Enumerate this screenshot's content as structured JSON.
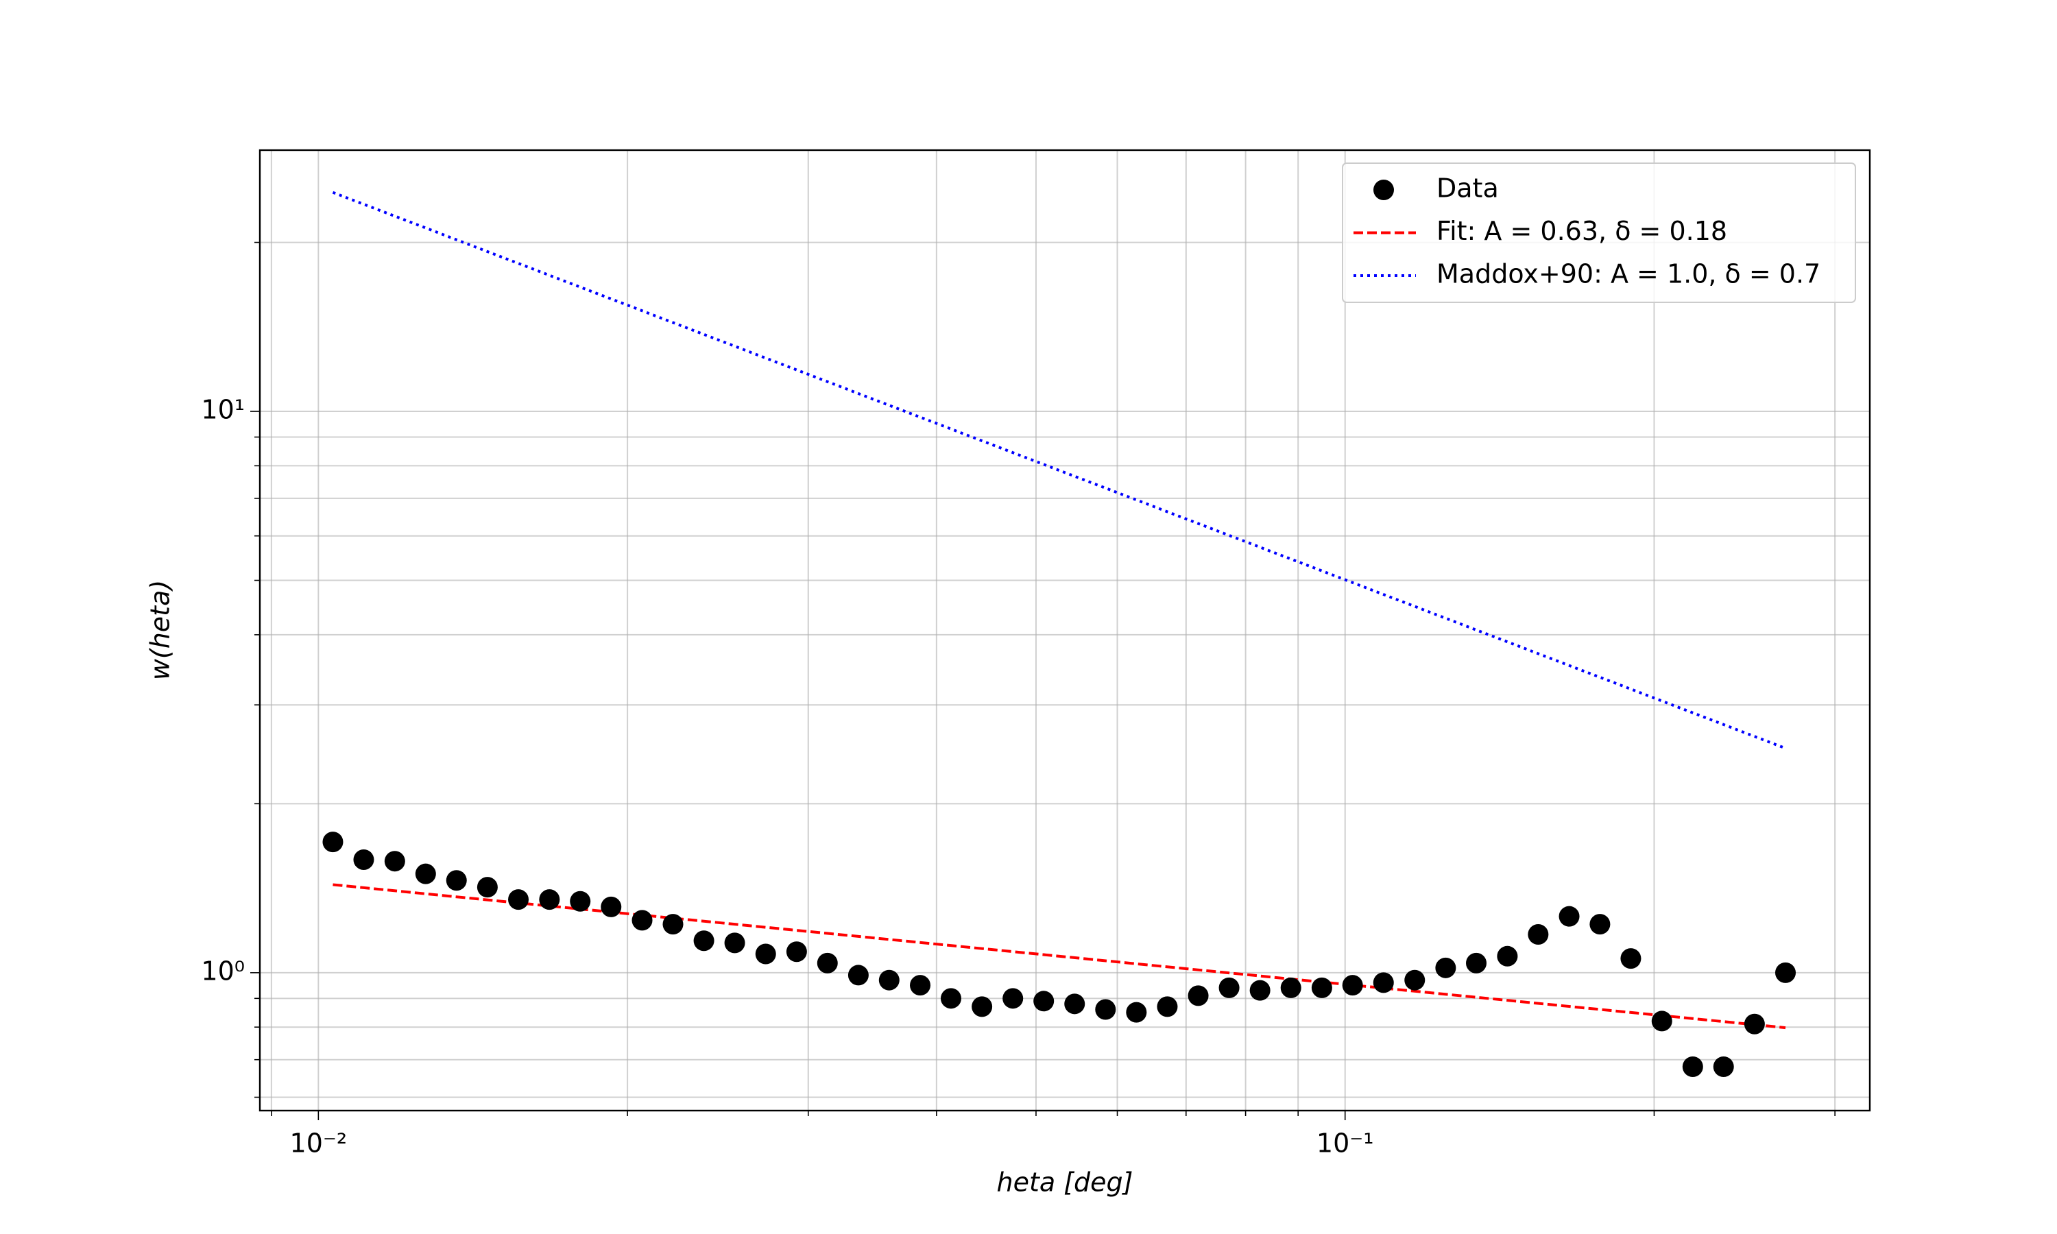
{
  "chart_data": {
    "type": "scatter",
    "log_x": true,
    "log_y": true,
    "grid": true,
    "legend": "upper right",
    "xlabel": "heta [deg]",
    "ylabel": "w(heta)",
    "xlim": [
      0.00877,
      0.3244
    ],
    "ylim": [
      0.568,
      29.2
    ],
    "xticks": [
      {
        "value": 0.01,
        "label": "10⁻²"
      },
      {
        "value": 0.1,
        "label": "10⁻¹"
      }
    ],
    "yticks": [
      {
        "value": 1,
        "label": "10⁰"
      },
      {
        "value": 10,
        "label": "10¹"
      }
    ],
    "xminorticks": [
      0.009,
      0.02,
      0.03,
      0.04,
      0.05,
      0.06,
      0.07,
      0.08,
      0.09,
      0.2,
      0.3
    ],
    "yminorticks": [
      0.6,
      0.7,
      0.8,
      0.9,
      2,
      3,
      4,
      5,
      6,
      7,
      8,
      9,
      20
    ],
    "series": [
      {
        "name": "Data",
        "kind": "scatter",
        "color": "#000000",
        "x": [
          0.01033,
          0.01107,
          0.01187,
          0.01272,
          0.01363,
          0.01461,
          0.01566,
          0.01679,
          0.01799,
          0.01928,
          0.02067,
          0.02215,
          0.02374,
          0.02544,
          0.02727,
          0.02923,
          0.03132,
          0.03357,
          0.03597,
          0.03856,
          0.04132,
          0.04429,
          0.04747,
          0.05087,
          0.05452,
          0.05843,
          0.06262,
          0.06712,
          0.07194,
          0.0771,
          0.08263,
          0.08856,
          0.09493,
          0.1017,
          0.109,
          0.1169,
          0.1253,
          0.1342,
          0.1439,
          0.1542,
          0.1653,
          0.1771,
          0.1898,
          0.2035,
          0.2181,
          0.2337,
          0.2505,
          0.2685
        ],
        "values": [
          1.71,
          1.59,
          1.58,
          1.5,
          1.46,
          1.42,
          1.35,
          1.35,
          1.34,
          1.31,
          1.24,
          1.22,
          1.14,
          1.13,
          1.08,
          1.09,
          1.04,
          0.99,
          0.97,
          0.95,
          0.9,
          0.87,
          0.9,
          0.89,
          0.88,
          0.86,
          0.85,
          0.87,
          0.91,
          0.94,
          0.93,
          0.94,
          0.94,
          0.95,
          0.96,
          0.97,
          1.02,
          1.04,
          1.07,
          1.17,
          1.26,
          1.22,
          1.06,
          0.82,
          0.68,
          0.68,
          0.81,
          1.0
        ]
      },
      {
        "name": "Fit: A = 0.63, δ = 0.18",
        "kind": "line",
        "dash": "dashed",
        "color": "#ff0000",
        "x": [
          0.01033,
          0.2685
        ],
        "values": [
          1.435,
          0.798
        ]
      },
      {
        "name": "Maddox+90: A = 1.0, δ = 0.7",
        "kind": "line",
        "dash": "dotted",
        "color": "#0000ff",
        "x": [
          0.01033,
          0.2685
        ],
        "values": [
          24.55,
          2.511
        ]
      }
    ]
  }
}
